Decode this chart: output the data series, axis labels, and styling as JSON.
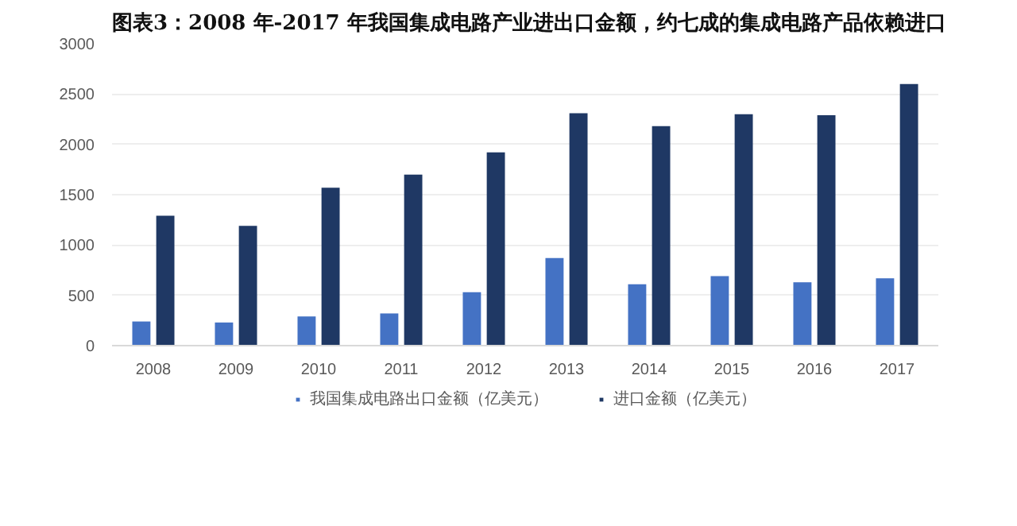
{
  "chart_data": {
    "type": "bar",
    "title": "图表3：2008 年-2017 年我国集成电路产业进出口金额，约七成的集成电路产品依赖进口",
    "categories": [
      "2008",
      "2009",
      "2010",
      "2011",
      "2012",
      "2013",
      "2014",
      "2015",
      "2016",
      "2017"
    ],
    "series": [
      {
        "name": "我国集成电路出口金额（亿美元）",
        "color": "#4472c4",
        "values": [
          240,
          230,
          290,
          320,
          530,
          870,
          610,
          690,
          630,
          670
        ]
      },
      {
        "name": "进口金额（亿美元）",
        "color": "#1f3864",
        "values": [
          1290,
          1190,
          1570,
          1700,
          1920,
          2310,
          2180,
          2300,
          2290,
          2600
        ]
      }
    ],
    "ylim": [
      0,
      3000
    ],
    "yticks": [
      0,
      500,
      1000,
      1500,
      2000,
      2500,
      3000
    ],
    "grid": "y",
    "legend": "bottom"
  }
}
